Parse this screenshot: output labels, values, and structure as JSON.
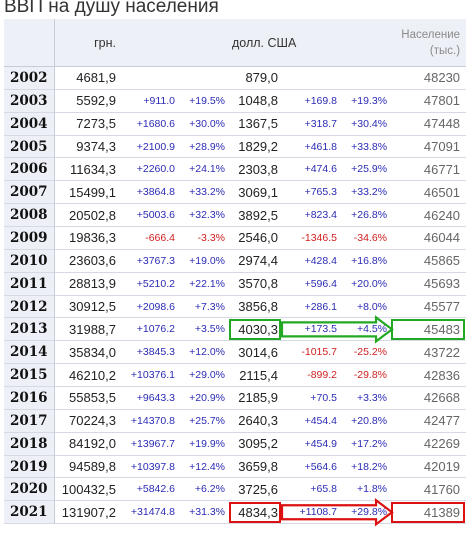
{
  "title": "ВВП на душу населения",
  "headers": {
    "uah": "грн.",
    "usd": "долл. США",
    "population_line1": "Население",
    "population_line2": "(тыс.)"
  },
  "rows": [
    {
      "year": "2002",
      "uah": "4681,9",
      "uah_abs": "",
      "uah_pct": "",
      "usd": "879,0",
      "usd_abs": "",
      "usd_pct": "",
      "pop": "48230"
    },
    {
      "year": "2003",
      "uah": "5592,9",
      "uah_abs": "+911.0",
      "uah_pct": "+19.5%",
      "usd": "1048,8",
      "usd_abs": "+169.8",
      "usd_pct": "+19.3%",
      "pop": "47801"
    },
    {
      "year": "2004",
      "uah": "7273,5",
      "uah_abs": "+1680.6",
      "uah_pct": "+30.0%",
      "usd": "1367,5",
      "usd_abs": "+318.7",
      "usd_pct": "+30.4%",
      "pop": "47448"
    },
    {
      "year": "2005",
      "uah": "9374,3",
      "uah_abs": "+2100.9",
      "uah_pct": "+28.9%",
      "usd": "1829,2",
      "usd_abs": "+461.8",
      "usd_pct": "+33.8%",
      "pop": "47091"
    },
    {
      "year": "2006",
      "uah": "11634,3",
      "uah_abs": "+2260.0",
      "uah_pct": "+24.1%",
      "usd": "2303,8",
      "usd_abs": "+474.6",
      "usd_pct": "+25.9%",
      "pop": "46771"
    },
    {
      "year": "2007",
      "uah": "15499,1",
      "uah_abs": "+3864.8",
      "uah_pct": "+33.2%",
      "usd": "3069,1",
      "usd_abs": "+765.3",
      "usd_pct": "+33.2%",
      "pop": "46501"
    },
    {
      "year": "2008",
      "uah": "20502,8",
      "uah_abs": "+5003.6",
      "uah_pct": "+32.3%",
      "usd": "3892,5",
      "usd_abs": "+823.4",
      "usd_pct": "+26.8%",
      "pop": "46240"
    },
    {
      "year": "2009",
      "uah": "19836,3",
      "uah_abs": "-666.4",
      "uah_pct": "-3.3%",
      "usd": "2546,0",
      "usd_abs": "-1346.5",
      "usd_pct": "-34.6%",
      "pop": "46044"
    },
    {
      "year": "2010",
      "uah": "23603,6",
      "uah_abs": "+3767.3",
      "uah_pct": "+19.0%",
      "usd": "2974,4",
      "usd_abs": "+428.4",
      "usd_pct": "+16.8%",
      "pop": "45865"
    },
    {
      "year": "2011",
      "uah": "28813,9",
      "uah_abs": "+5210.2",
      "uah_pct": "+22.1%",
      "usd": "3570,8",
      "usd_abs": "+596.4",
      "usd_pct": "+20.0%",
      "pop": "45693"
    },
    {
      "year": "2012",
      "uah": "30912,5",
      "uah_abs": "+2098.6",
      "uah_pct": "+7.3%",
      "usd": "3856,8",
      "usd_abs": "+286.1",
      "usd_pct": "+8.0%",
      "pop": "45577"
    },
    {
      "year": "2013",
      "uah": "31988,7",
      "uah_abs": "+1076.2",
      "uah_pct": "+3.5%",
      "usd": "4030,3",
      "usd_abs": "+173.5",
      "usd_pct": "+4.5%",
      "pop": "45483"
    },
    {
      "year": "2014",
      "uah": "35834,0",
      "uah_abs": "+3845.3",
      "uah_pct": "+12.0%",
      "usd": "3014,6",
      "usd_abs": "-1015.7",
      "usd_pct": "-25.2%",
      "pop": "43722"
    },
    {
      "year": "2015",
      "uah": "46210,2",
      "uah_abs": "+10376.1",
      "uah_pct": "+29.0%",
      "usd": "2115,4",
      "usd_abs": "-899.2",
      "usd_pct": "-29.8%",
      "pop": "42836"
    },
    {
      "year": "2016",
      "uah": "55853,5",
      "uah_abs": "+9643.3",
      "uah_pct": "+20.9%",
      "usd": "2185,9",
      "usd_abs": "+70.5",
      "usd_pct": "+3.3%",
      "pop": "42668"
    },
    {
      "year": "2017",
      "uah": "70224,3",
      "uah_abs": "+14370.8",
      "uah_pct": "+25.7%",
      "usd": "2640,3",
      "usd_abs": "+454.4",
      "usd_pct": "+20.8%",
      "pop": "42477"
    },
    {
      "year": "2018",
      "uah": "84192,0",
      "uah_abs": "+13967.7",
      "uah_pct": "+19.9%",
      "usd": "3095,2",
      "usd_abs": "+454.9",
      "usd_pct": "+17.2%",
      "pop": "42269"
    },
    {
      "year": "2019",
      "uah": "94589,8",
      "uah_abs": "+10397.8",
      "uah_pct": "+12.4%",
      "usd": "3659,8",
      "usd_abs": "+564.6",
      "usd_pct": "+18.2%",
      "pop": "42019"
    },
    {
      "year": "2020",
      "uah": "100432,5",
      "uah_abs": "+5842.6",
      "uah_pct": "+6.2%",
      "usd": "3725,6",
      "usd_abs": "+65.8",
      "usd_pct": "+1.8%",
      "pop": "41760"
    },
    {
      "year": "2021",
      "uah": "131907,2",
      "uah_abs": "+31474.8",
      "uah_pct": "+31.3%",
      "usd": "4834,3",
      "usd_abs": "+1108.7",
      "usd_pct": "+29.8%",
      "pop": "41389"
    }
  ],
  "colors": {
    "positive": "#2b2bb5",
    "negative": "#d02020",
    "highlight_2013": "#23a823",
    "highlight_2021": "#dd1111",
    "header_bg": "#eef0f7"
  }
}
